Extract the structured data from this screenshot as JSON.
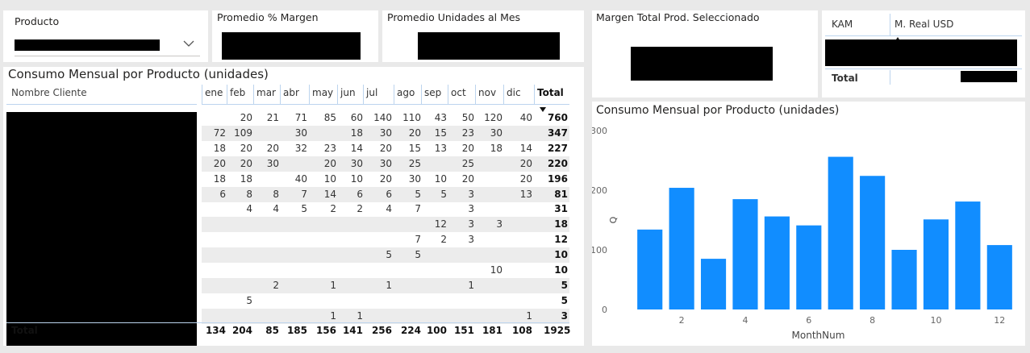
{
  "slicer": {
    "title": "Producto"
  },
  "cards": {
    "avg_margin": {
      "title": "Promedio % Margen"
    },
    "avg_units": {
      "title": "Promedio Unidades al Mes"
    },
    "total_margin": {
      "title": "Margen Total Prod. Seleccionado"
    }
  },
  "kam_table": {
    "col_kam": "KAM",
    "col_real": "M. Real USD",
    "total_label": "Total"
  },
  "matrix": {
    "title": "Consumo Mensual por Producto (unidades)",
    "row_header": "Nombre Cliente",
    "months": [
      "ene",
      "feb",
      "mar",
      "abr",
      "may",
      "jun",
      "jul",
      "ago",
      "sep",
      "oct",
      "nov",
      "dic"
    ],
    "total_header": "Total",
    "rows": [
      [
        "",
        "20",
        "21",
        "71",
        "85",
        "60",
        "140",
        "110",
        "43",
        "50",
        "120",
        "40",
        "760"
      ],
      [
        "72",
        "109",
        "",
        "30",
        "",
        "18",
        "30",
        "20",
        "15",
        "23",
        "30",
        "",
        "347"
      ],
      [
        "18",
        "20",
        "20",
        "32",
        "23",
        "14",
        "20",
        "15",
        "13",
        "20",
        "18",
        "14",
        "227"
      ],
      [
        "20",
        "20",
        "30",
        "",
        "20",
        "30",
        "30",
        "25",
        "",
        "25",
        "",
        "20",
        "220"
      ],
      [
        "18",
        "18",
        "",
        "40",
        "10",
        "10",
        "20",
        "30",
        "10",
        "20",
        "",
        "20",
        "196"
      ],
      [
        "6",
        "8",
        "8",
        "7",
        "14",
        "6",
        "6",
        "5",
        "5",
        "3",
        "",
        "13",
        "81"
      ],
      [
        "",
        "4",
        "4",
        "5",
        "2",
        "2",
        "4",
        "7",
        "",
        "3",
        "",
        "",
        "31"
      ],
      [
        "",
        "",
        "",
        "",
        "",
        "",
        "",
        "",
        "12",
        "3",
        "3",
        "",
        "18"
      ],
      [
        "",
        "",
        "",
        "",
        "",
        "",
        "",
        "7",
        "2",
        "3",
        "",
        "",
        "12"
      ],
      [
        "",
        "",
        "",
        "",
        "",
        "",
        "5",
        "5",
        "",
        "",
        "",
        "",
        "10"
      ],
      [
        "",
        "",
        "",
        "",
        "",
        "",
        "",
        "",
        "",
        "",
        "10",
        "",
        "10"
      ],
      [
        "",
        "",
        "2",
        "",
        "1",
        "",
        "1",
        "",
        "",
        "1",
        "",
        "",
        "5"
      ],
      [
        "",
        "5",
        "",
        "",
        "",
        "",
        "",
        "",
        "",
        "",
        "",
        "",
        "5"
      ],
      [
        "",
        "",
        "",
        "",
        "1",
        "1",
        "",
        "",
        "",
        "",
        "",
        "1",
        "3"
      ]
    ],
    "total_label": "Total",
    "totals": [
      "134",
      "204",
      "85",
      "185",
      "156",
      "141",
      "256",
      "224",
      "100",
      "151",
      "181",
      "108",
      "1925"
    ]
  },
  "chart_data": {
    "type": "bar",
    "title": "Consumo Mensual por Producto (unidades)",
    "xlabel": "MonthNum",
    "ylabel": "Q",
    "x": [
      1,
      2,
      3,
      4,
      5,
      6,
      7,
      8,
      9,
      10,
      11,
      12
    ],
    "values": [
      134,
      204,
      85,
      185,
      156,
      141,
      256,
      224,
      100,
      151,
      181,
      108
    ],
    "ylim": [
      0,
      300
    ],
    "yticks": [
      "0",
      "100",
      "200",
      "300"
    ],
    "xticks": [
      "2",
      "4",
      "6",
      "8",
      "10",
      "12"
    ],
    "bar_color": "#118DFF",
    "grid": false
  }
}
